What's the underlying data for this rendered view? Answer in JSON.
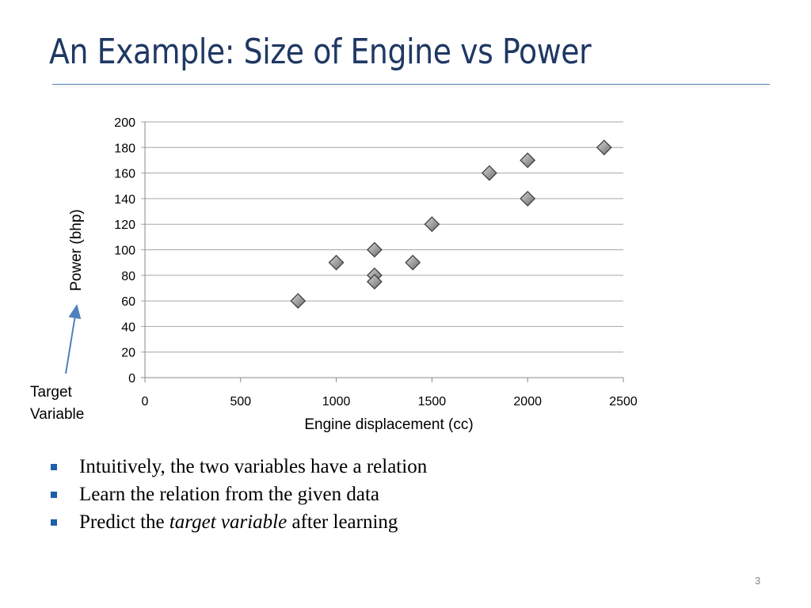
{
  "slide": {
    "title": "An Example: Size of Engine vs Power",
    "annotation": {
      "line1": "Target",
      "line2": "Variable"
    },
    "bullets": [
      {
        "before": "Intuitively, the two variables have a relation",
        "italic": "",
        "after": ""
      },
      {
        "before": "Learn the relation from the given data",
        "italic": "",
        "after": ""
      },
      {
        "before": "Predict the ",
        "italic": "target variable",
        "after": " after learning"
      }
    ],
    "page_number": "3",
    "accent_color": "#1f3864"
  },
  "chart_data": {
    "type": "scatter",
    "xlabel": "Engine displacement (cc)",
    "ylabel": "Power (bhp)",
    "xlim": [
      0,
      2500
    ],
    "ylim": [
      0,
      200
    ],
    "xticks": [
      0,
      500,
      1000,
      1500,
      2000,
      2500
    ],
    "yticks": [
      0,
      20,
      40,
      60,
      80,
      100,
      120,
      140,
      160,
      180,
      200
    ],
    "grid": "horizontal",
    "marker": "diamond",
    "marker_color": "#808080",
    "points": [
      {
        "x": 800,
        "y": 60
      },
      {
        "x": 1000,
        "y": 90
      },
      {
        "x": 1200,
        "y": 100
      },
      {
        "x": 1200,
        "y": 80
      },
      {
        "x": 1200,
        "y": 75
      },
      {
        "x": 1400,
        "y": 90
      },
      {
        "x": 1500,
        "y": 120
      },
      {
        "x": 1800,
        "y": 160
      },
      {
        "x": 2000,
        "y": 170
      },
      {
        "x": 2000,
        "y": 140
      },
      {
        "x": 2400,
        "y": 180
      }
    ]
  }
}
